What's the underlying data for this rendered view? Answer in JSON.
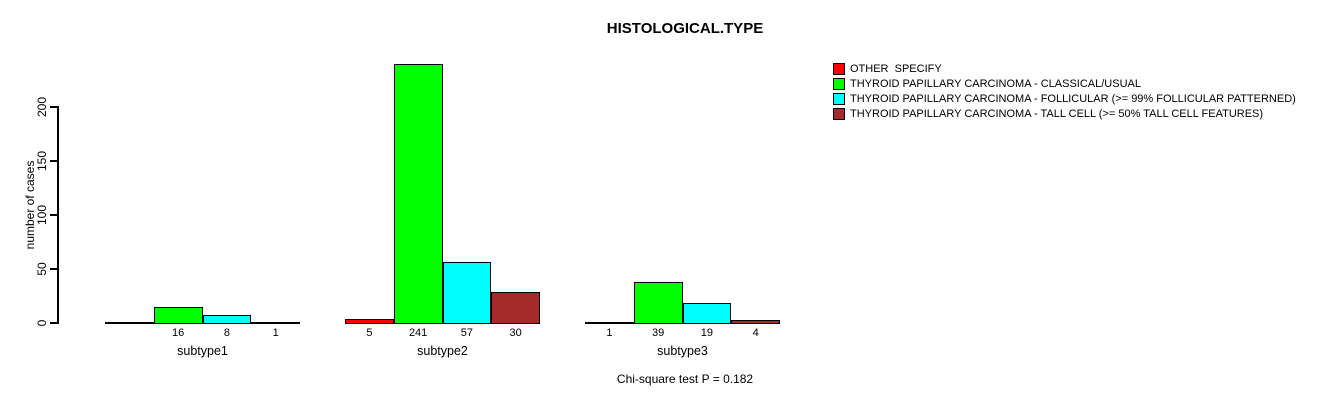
{
  "chart_data": {
    "type": "bar",
    "title": "HISTOLOGICAL.TYPE",
    "ylabel": "number of cases",
    "xlabel": "",
    "yticks": [
      0,
      50,
      100,
      150,
      200
    ],
    "ylim": [
      0,
      250
    ],
    "grid": false,
    "legend_position": "top-right",
    "categories": [
      "subtype1",
      "subtype2",
      "subtype3"
    ],
    "series": [
      {
        "name": "OTHER  SPECIFY",
        "color": "#FF0000",
        "values": [
          0,
          5,
          1
        ],
        "bar_labels": [
          "",
          "5",
          "1"
        ]
      },
      {
        "name": "THYROID PAPILLARY CARCINOMA - CLASSICAL/USUAL",
        "color": "#00FF00",
        "values": [
          16,
          241,
          39
        ],
        "bar_labels": [
          "16",
          "241",
          "39"
        ]
      },
      {
        "name": "THYROID PAPILLARY CARCINOMA - FOLLICULAR (>= 99% FOLLICULAR PATTERNED)",
        "color": "#00FFFF",
        "values": [
          8,
          57,
          19
        ],
        "bar_labels": [
          "8",
          "57",
          "19"
        ]
      },
      {
        "name": "THYROID PAPILLARY CARCINOMA - TALL CELL (>= 50% TALL CELL FEATURES)",
        "color": "#A52A2A",
        "values": [
          1,
          30,
          4
        ],
        "bar_labels": [
          "1",
          "30",
          "4"
        ]
      }
    ],
    "annotation": "Chi-square test P = 0.182"
  }
}
